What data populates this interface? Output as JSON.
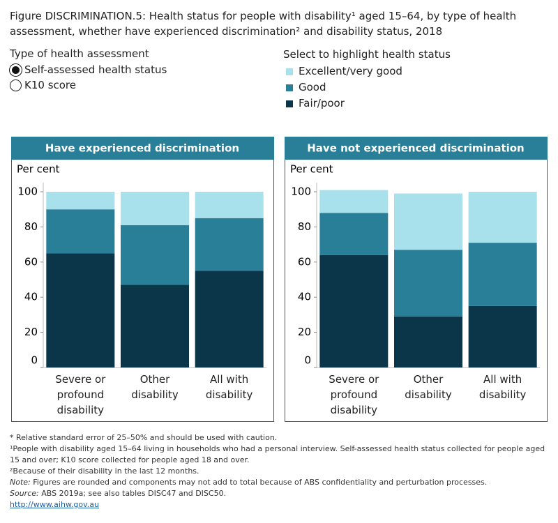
{
  "title": "Figure DISCRIMINATION.5: Health status for people with disability¹ aged 15–64, by type of health assessment, whether have experienced discrimination² and disability status, 2018",
  "controls": {
    "assessment_label": "Type of health assessment",
    "assessment_options": [
      "Self-assessed health status",
      "K10 score"
    ],
    "selected": 0,
    "highlight_label": "Select to highlight health status"
  },
  "chart_data": [
    {
      "type": "stacked_bar",
      "title": "Have experienced discrimination",
      "y_label": "Per cent",
      "categories": [
        "Severe or profound disability",
        "Other disability",
        "All with disability"
      ],
      "series": [
        {
          "name": "Excellent/very good",
          "color": "#a8e1ec",
          "values": [
            10,
            19,
            15
          ]
        },
        {
          "name": "Good",
          "color": "#2a7f98",
          "values": [
            25,
            34,
            30
          ]
        },
        {
          "name": "Fair/poor",
          "color": "#0b3548",
          "values": [
            65,
            47,
            55
          ]
        }
      ],
      "ylim": [
        0,
        100
      ],
      "yticks": [
        0,
        20,
        40,
        60,
        80,
        100
      ]
    },
    {
      "type": "stacked_bar",
      "title": "Have not experienced discrimination",
      "y_label": "Per cent",
      "categories": [
        "Severe or profound disability",
        "Other disability",
        "All with disability"
      ],
      "series": [
        {
          "name": "Excellent/very good",
          "color": "#a8e1ec",
          "values": [
            13,
            32,
            29
          ]
        },
        {
          "name": "Good",
          "color": "#2a7f98",
          "values": [
            24,
            38,
            36
          ]
        },
        {
          "name": "Fair/poor",
          "color": "#0b3548",
          "values": [
            64,
            29,
            35
          ]
        }
      ],
      "ylim": [
        0,
        100
      ],
      "yticks": [
        0,
        20,
        40,
        60,
        80,
        100
      ]
    }
  ],
  "footnotes": [
    "* Relative standard error of 25–50% and should be used with caution.",
    "¹People with disability aged 15–64 living in households who had a personal interview. Self-assessed health status collected for people aged 15 and over; K10 score collected for people aged 18 and over.",
    "²Because of their disability in the last 12 months."
  ],
  "note": {
    "label": "Note:",
    "text": " Figures are rounded and components may not add to total because of ABS confidentiality and perturbation processes."
  },
  "source": {
    "label": "Source:",
    "text": " ABS 2019a; see also tables DISC47 and DISC50."
  },
  "link": "http://www.aihw.gov.au"
}
